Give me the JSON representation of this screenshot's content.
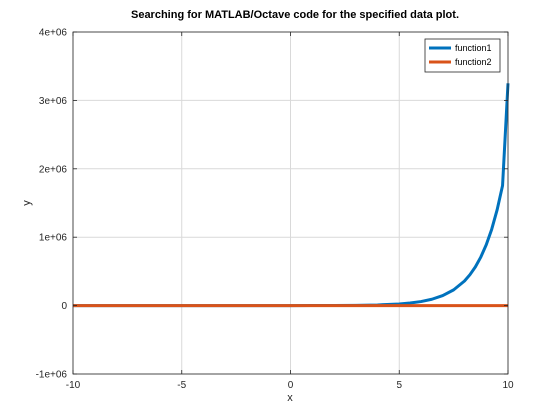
{
  "chart_data": {
    "type": "line",
    "title": "Searching for MATLAB/Octave code for the specified data plot.",
    "xlabel": "x",
    "ylabel": "y",
    "xlim": [
      -10,
      10
    ],
    "ylim": [
      -1000000,
      4000000
    ],
    "xticks": [
      -10,
      -5,
      0,
      5,
      10
    ],
    "xtick_labels": [
      "-10",
      "-5",
      "0",
      "5",
      "10"
    ],
    "yticks": [
      -1000000,
      0,
      1000000,
      2000000,
      3000000,
      4000000
    ],
    "ytick_labels": [
      "-1e+06",
      "0",
      "1e+06",
      "2e+06",
      "3e+06",
      "4e+06"
    ],
    "grid": true,
    "legend_position": "top-right",
    "series": [
      {
        "name": "function1",
        "color": "#0072bd",
        "x": [
          -10,
          -8,
          -6,
          -4,
          -2,
          0,
          1,
          2,
          3,
          4,
          5,
          5.5,
          6,
          6.5,
          7,
          7.5,
          8,
          8.25,
          8.5,
          8.75,
          9,
          9.25,
          9.5,
          9.75,
          10
        ],
        "y": [
          0,
          0,
          0,
          10,
          50,
          300,
          650,
          1600,
          3900,
          9700,
          24000,
          37500,
          59000,
          93000,
          146000,
          230000,
          360000,
          452000,
          566000,
          710000,
          890000,
          1115000,
          1400000,
          1755000,
          3250000
        ]
      },
      {
        "name": "function2",
        "color": "#d95319",
        "x": [
          -10,
          10
        ],
        "y": [
          0,
          0
        ]
      }
    ]
  }
}
